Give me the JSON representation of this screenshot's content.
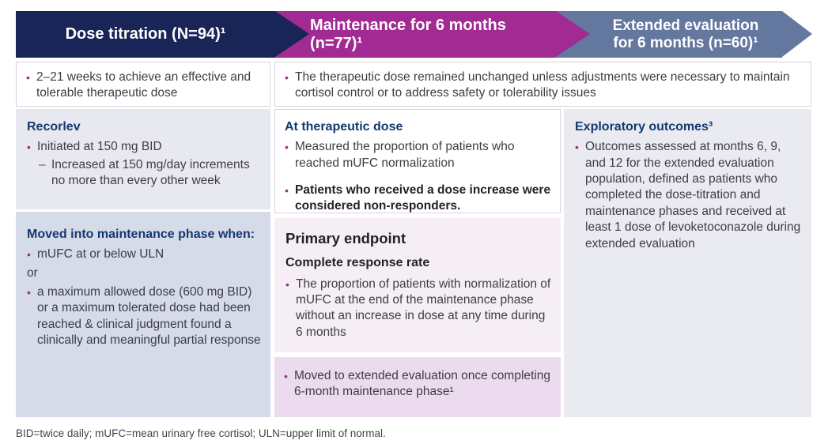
{
  "markers": {
    "bullet": "•",
    "dash": "–"
  },
  "header": {
    "phases": [
      {
        "label": "Dose titration (N=94)¹"
      },
      {
        "label": "Maintenance for 6 months (n=77)¹"
      },
      {
        "label": "Extended evaluation for 6 months (n=60)¹"
      }
    ]
  },
  "row1": {
    "titration_bullet": "2–21 weeks to achieve an effective and tolerable therapeutic dose",
    "maintenance_bullet": "The therapeutic dose remained unchanged unless adjustments were necessary to maintain cortisol control or to address safety or tolerability issues"
  },
  "titration": {
    "box1": {
      "heading": "Recorlev",
      "bullet": "Initiated at 150 mg BID",
      "subbullet": "Increased at 150 mg/day increments no more than every other week"
    },
    "box2": {
      "heading": "Moved into maintenance phase when:",
      "bullet1": "mUFC at or below ULN",
      "connector": "or",
      "bullet2": "a maximum allowed dose (600 mg BID) or a maximum tolerated dose had been reached & clinical judgment found a clinically and meaningful partial response"
    }
  },
  "maintenance": {
    "box1": {
      "heading": "At therapeutic dose",
      "bullet1": "Measured the proportion of patients who reached mUFC normalization",
      "bullet2": "Patients who received a dose increase were considered non-responders."
    },
    "box2": {
      "title": "Primary endpoint",
      "subtitle": "Complete response rate",
      "bullet": "The proportion of patients with normalization of mUFC at the end of the maintenance phase without an increase in dose at any time during 6 months"
    },
    "box3": {
      "bullet": "Moved to extended evaluation once completing 6-month maintenance phase¹"
    }
  },
  "extended": {
    "box": {
      "heading": "Exploratory outcomes³",
      "bullet": "Outcomes assessed at months 6, 9, and 12 for the extended evaluation population, defined as patients who completed the dose-titration and maintenance phases and received at least 1 dose of levoketoconazole during extended evaluation"
    }
  },
  "footnote": "BID=twice daily; mUFC=mean urinary free cortisol; ULN=upper limit of normal.",
  "colors": {
    "phase1_navy": "#192457",
    "phase2_magenta": "#a12b93",
    "phase3_slate": "#64779e",
    "heading_navy_text": "#16386f",
    "body_text": "#3f3c45",
    "bullet_marker": "#93328e",
    "box_gray_light": "#e7e8f0",
    "box_gray_medium": "#d6dbe9",
    "box_gray_right": "#e9ebf1",
    "box_pink_light": "#f5eef5",
    "box_pink_dark": "#ecdbee",
    "cell_border": "#d9d3df"
  }
}
